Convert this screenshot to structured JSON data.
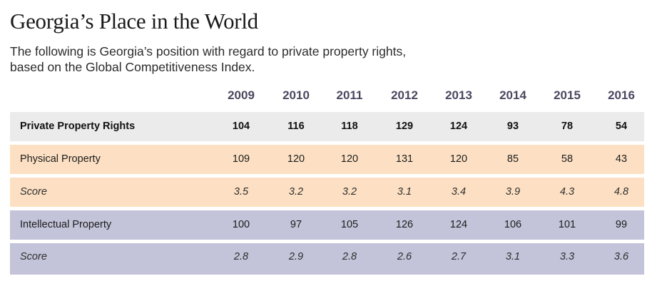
{
  "header": {
    "title": "Georgia’s Place in the World",
    "subtitle": "The following is Georgia’s position with regard to private property rights, based on the Global Competitiveness Index."
  },
  "table": {
    "years": [
      "2009",
      "2010",
      "2011",
      "2012",
      "2013",
      "2014",
      "2015",
      "2016"
    ],
    "rows": [
      {
        "label": "Private Property Rights",
        "style": "bold",
        "color": "#ebebeb",
        "values": [
          "104",
          "116",
          "118",
          "129",
          "124",
          "93",
          "78",
          "54"
        ]
      },
      {
        "label": "Physical Property",
        "style": "normal",
        "color": "#fde0c3",
        "values": [
          "109",
          "120",
          "120",
          "131",
          "120",
          "85",
          "58",
          "43"
        ]
      },
      {
        "label": "Score",
        "style": "italic",
        "color": "#fde0c3",
        "values": [
          "3.5",
          "3.2",
          "3.2",
          "3.1",
          "3.4",
          "3.9",
          "4.3",
          "4.8"
        ]
      },
      {
        "label": "Intellectual Property",
        "style": "normal",
        "color": "#c3c3d9",
        "values": [
          "100",
          "97",
          "105",
          "126",
          "124",
          "106",
          "101",
          "99"
        ]
      },
      {
        "label": "Score",
        "style": "italic",
        "color": "#c3c3d9",
        "values": [
          "2.8",
          "2.9",
          "2.8",
          "2.6",
          "2.7",
          "3.1",
          "3.3",
          "3.6"
        ]
      }
    ]
  },
  "colors": {
    "year_header": "#4a4860",
    "overall_row": "#ebebeb",
    "physical_rows": "#fde0c3",
    "intellectual_rows": "#c3c3d9"
  }
}
